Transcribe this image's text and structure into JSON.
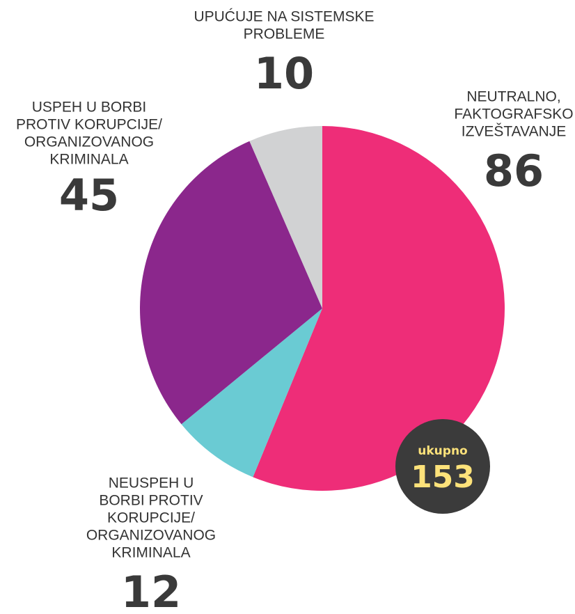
{
  "chart_data": {
    "type": "pie",
    "labels": [
      [
        "NEUTRALNO,",
        "FAKTOGRAFSKO",
        "IZVEŠTAVANJE"
      ],
      [
        "NEUSPEH U",
        "BORBI PROTIV",
        "KORUPCIJE/",
        "ORGANIZOVANOG",
        "KRIMINALA"
      ],
      [
        "USPEH U BORBI",
        "PROTIV KORUPCIJE/",
        "ORGANIZOVANOG",
        "KRIMINALA"
      ],
      [
        "UPUĆUJE NA SISTEMSKE",
        "PROBLEME"
      ]
    ],
    "values": [
      86,
      12,
      45,
      10
    ],
    "colors": [
      "#ee2d78",
      "#6acbd3",
      "#8b278c",
      "#d1d2d3"
    ],
    "total_label": "ukupno",
    "total": 153
  }
}
